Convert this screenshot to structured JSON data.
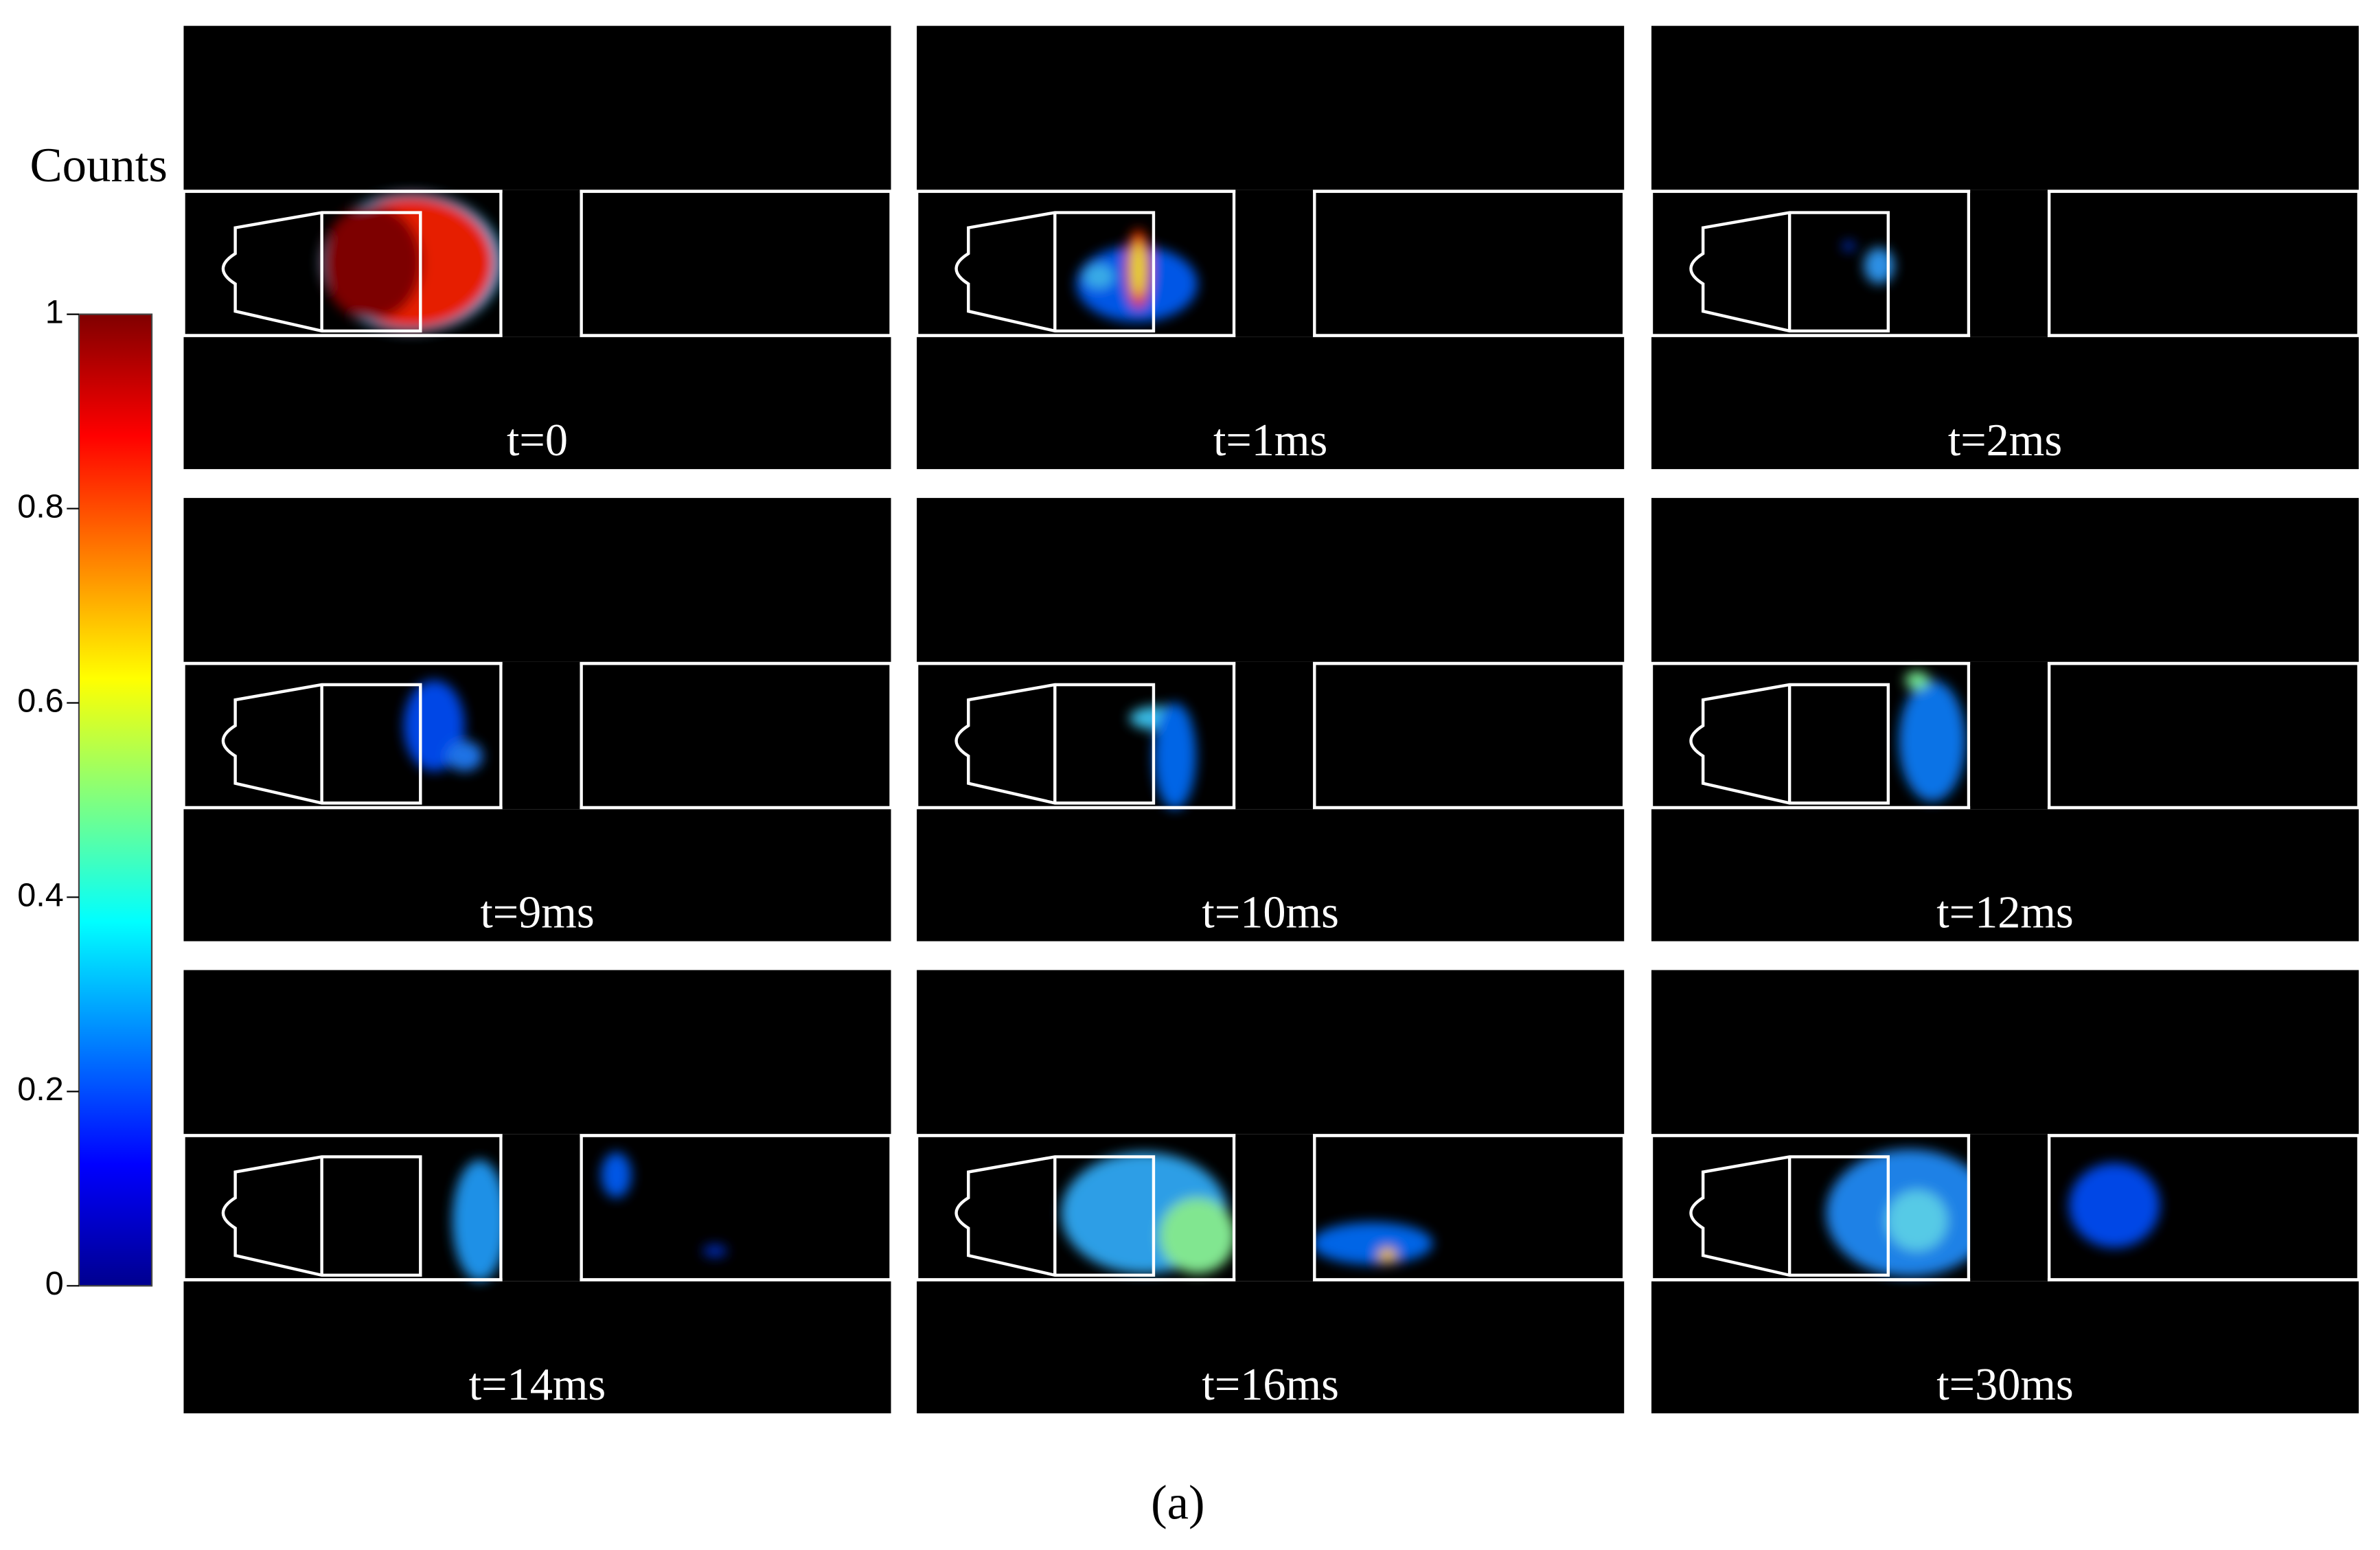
{
  "colorbar": {
    "label": "Counts",
    "lim": [
      0,
      1
    ],
    "ticks": [
      0,
      0.2,
      0.4,
      0.6,
      0.8,
      1
    ]
  },
  "panels": [
    {
      "label": "t=0"
    },
    {
      "label": "t=1ms"
    },
    {
      "label": "t=2ms"
    },
    {
      "label": "t=9ms"
    },
    {
      "label": "t=10ms"
    },
    {
      "label": "t=12ms"
    },
    {
      "label": "t=14ms"
    },
    {
      "label": "t=16ms"
    },
    {
      "label": "t=30ms"
    }
  ],
  "caption": "(a)"
}
